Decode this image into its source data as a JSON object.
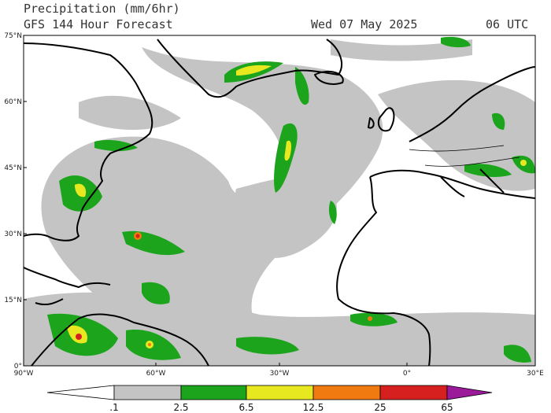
{
  "header": {
    "title": "Precipitation (mm/6hr)",
    "subtitle": "GFS 144 Hour Forecast",
    "date": "Wed 07 May 2025",
    "time": "06 UTC"
  },
  "map": {
    "lat_labels": [
      "75°N",
      "60°N",
      "45°N",
      "30°N",
      "15°N",
      "0°"
    ],
    "lon_labels": [
      "90°W",
      "60°W",
      "30°W",
      "0°",
      "30°E"
    ]
  },
  "colorbar": {
    "labels": [
      ".1",
      "2.5",
      "6.5",
      "12.5",
      "25",
      "65"
    ]
  }
}
